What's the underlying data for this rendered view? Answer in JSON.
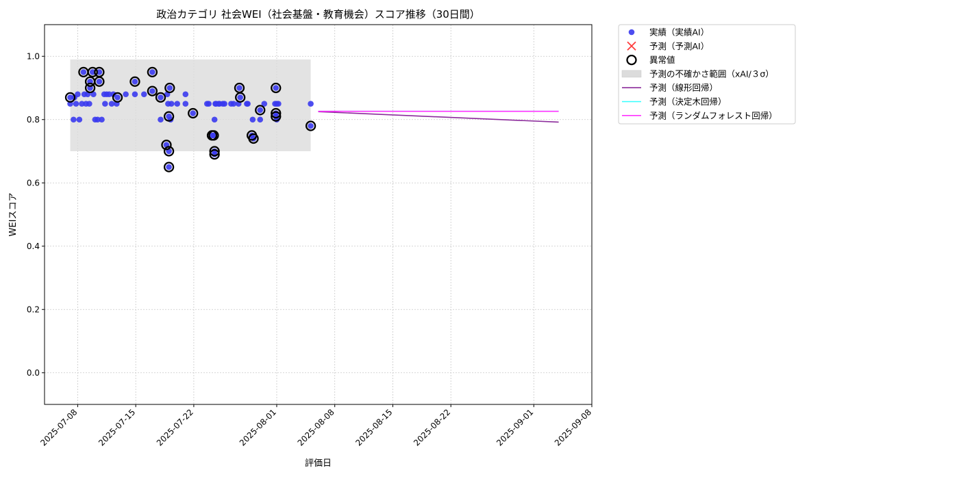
{
  "chart_data": {
    "type": "scatter",
    "title": "政治カテゴリ 社会WEI（社会基盤・教育機会）スコア推移（30日間）",
    "xlabel": "評価日",
    "ylabel": "WEIスコア",
    "xlim": [
      "2025-07-04",
      "2025-09-08"
    ],
    "ylim": [
      -0.1,
      1.1
    ],
    "x_ticks": [
      "2025-07-08",
      "2025-07-15",
      "2025-07-22",
      "2025-08-01",
      "2025-08-08",
      "2025-08-15",
      "2025-08-22",
      "2025-09-01",
      "2025-09-08"
    ],
    "y_ticks": [
      "0.0",
      "0.2",
      "0.4",
      "0.6",
      "0.8",
      "1.0"
    ],
    "grid": true,
    "legend_position": "outside-top-right",
    "legend": [
      {
        "label": "実績（実績AI）",
        "kind": "dot",
        "color": "#3a3aee"
      },
      {
        "label": "予測（予測AI）",
        "kind": "cross",
        "color": "#ff3b3b"
      },
      {
        "label": "異常値",
        "kind": "ring",
        "color": "#000000"
      },
      {
        "label": "予測の不確かさ範囲（xAI/３σ）",
        "kind": "band",
        "color": "#dcdcdc"
      },
      {
        "label": "予測（線形回帰）",
        "kind": "line",
        "color": "#8b2a9b"
      },
      {
        "label": "予測（決定木回帰）",
        "kind": "line",
        "color": "#33ffff"
      },
      {
        "label": "予測（ランダムフォレスト回帰）",
        "kind": "line",
        "color": "#ff33ff"
      }
    ],
    "uncertainty_band": {
      "x_start": "2025-07-07.1",
      "x_end": "2025-08-05.1",
      "y_low": 0.7,
      "y_high": 0.99
    },
    "actual": [
      [
        "2025-07-07.1",
        0.87
      ],
      [
        "2025-07-07.1",
        0.85
      ],
      [
        "2025-07-07.5",
        0.8
      ],
      [
        "2025-07-07.6",
        0.87
      ],
      [
        "2025-07-07.8",
        0.85
      ],
      [
        "2025-07-08.0",
        0.88
      ],
      [
        "2025-07-08.2",
        0.8
      ],
      [
        "2025-07-08.5",
        0.85
      ],
      [
        "2025-07-08.7",
        0.95
      ],
      [
        "2025-07-08.8",
        0.88
      ],
      [
        "2025-07-09.0",
        0.85
      ],
      [
        "2025-07-09.2",
        0.88
      ],
      [
        "2025-07-09.4",
        0.85
      ],
      [
        "2025-07-09.5",
        0.92
      ],
      [
        "2025-07-09.5",
        0.9
      ],
      [
        "2025-07-09.8",
        0.95
      ],
      [
        "2025-07-09.9",
        0.88
      ],
      [
        "2025-07-10.1",
        0.8
      ],
      [
        "2025-07-10.4",
        0.8
      ],
      [
        "2025-07-10.6",
        0.92
      ],
      [
        "2025-07-10.6",
        0.95
      ],
      [
        "2025-07-10.9",
        0.8
      ],
      [
        "2025-07-11.2",
        0.88
      ],
      [
        "2025-07-11.3",
        0.85
      ],
      [
        "2025-07-11.5",
        0.88
      ],
      [
        "2025-07-11.8",
        0.88
      ],
      [
        "2025-07-12.1",
        0.85
      ],
      [
        "2025-07-12.3",
        0.88
      ],
      [
        "2025-07-12.7",
        0.85
      ],
      [
        "2025-07-12.8",
        0.87
      ],
      [
        "2025-07-13.8",
        0.88
      ],
      [
        "2025-07-14.9",
        0.88
      ],
      [
        "2025-07-14.9",
        0.92
      ],
      [
        "2025-07-16.0",
        0.88
      ],
      [
        "2025-07-17.0",
        0.95
      ],
      [
        "2025-07-17.0",
        0.89
      ],
      [
        "2025-07-18.0",
        0.87
      ],
      [
        "2025-07-18.0",
        0.8
      ],
      [
        "2025-07-18.7",
        0.72
      ],
      [
        "2025-07-18.8",
        0.88
      ],
      [
        "2025-07-18.9",
        0.85
      ],
      [
        "2025-07-19.0",
        0.81
      ],
      [
        "2025-07-19.0",
        0.7
      ],
      [
        "2025-07-19.0",
        0.65
      ],
      [
        "2025-07-19.1",
        0.9
      ],
      [
        "2025-07-19.2",
        0.8
      ],
      [
        "2025-07-19.3",
        0.85
      ],
      [
        "2025-07-20.0",
        0.85
      ],
      [
        "2025-07-21.0",
        0.88
      ],
      [
        "2025-07-21.0",
        0.85
      ],
      [
        "2025-07-21.9",
        0.82
      ],
      [
        "2025-07-23.6",
        0.85
      ],
      [
        "2025-07-23.8",
        0.85
      ],
      [
        "2025-07-24.2",
        0.75
      ],
      [
        "2025-07-24.4",
        0.75
      ],
      [
        "2025-07-24.5",
        0.7
      ],
      [
        "2025-07-24.5",
        0.69
      ],
      [
        "2025-07-24.5",
        0.8
      ],
      [
        "2025-07-24.6",
        0.85
      ],
      [
        "2025-07-24.7",
        0.85
      ],
      [
        "2025-07-25.0",
        0.85
      ],
      [
        "2025-07-25.1",
        0.85
      ],
      [
        "2025-07-25.5",
        0.85
      ],
      [
        "2025-07-25.7",
        0.85
      ],
      [
        "2025-07-26.5",
        0.85
      ],
      [
        "2025-07-26.8",
        0.85
      ],
      [
        "2025-07-27.4",
        0.85
      ],
      [
        "2025-07-27.5",
        0.9
      ],
      [
        "2025-07-27.6",
        0.87
      ],
      [
        "2025-07-28.4",
        0.85
      ],
      [
        "2025-07-28.5",
        0.85
      ],
      [
        "2025-07-29.0",
        0.75
      ],
      [
        "2025-07-29.2",
        0.74
      ],
      [
        "2025-07-29.1",
        0.8
      ],
      [
        "2025-07-30.0",
        0.83
      ],
      [
        "2025-07-30.0",
        0.8
      ],
      [
        "2025-07-30.5",
        0.85
      ],
      [
        "2025-07-31.9",
        0.9
      ],
      [
        "2025-07-31.9",
        0.82
      ],
      [
        "2025-07-31.9",
        0.81
      ],
      [
        "2025-07-31.8",
        0.85
      ],
      [
        "2025-08-01.0",
        0.8
      ],
      [
        "2025-08-01.0",
        0.85
      ],
      [
        "2025-08-01.2",
        0.85
      ],
      [
        "2025-08-05.1",
        0.85
      ],
      [
        "2025-08-05.1",
        0.78
      ]
    ],
    "anomalies": [
      [
        "2025-07-07.1",
        0.87
      ],
      [
        "2025-07-08.7",
        0.95
      ],
      [
        "2025-07-09.5",
        0.92
      ],
      [
        "2025-07-09.5",
        0.9
      ],
      [
        "2025-07-09.8",
        0.95
      ],
      [
        "2025-07-10.6",
        0.95
      ],
      [
        "2025-07-10.6",
        0.92
      ],
      [
        "2025-07-12.8",
        0.87
      ],
      [
        "2025-07-14.9",
        0.92
      ],
      [
        "2025-07-17.0",
        0.95
      ],
      [
        "2025-07-17.0",
        0.89
      ],
      [
        "2025-07-18.0",
        0.87
      ],
      [
        "2025-07-18.7",
        0.72
      ],
      [
        "2025-07-19.0",
        0.81
      ],
      [
        "2025-07-19.0",
        0.7
      ],
      [
        "2025-07-19.0",
        0.65
      ],
      [
        "2025-07-19.1",
        0.9
      ],
      [
        "2025-07-21.9",
        0.82
      ],
      [
        "2025-07-24.2",
        0.75
      ],
      [
        "2025-07-24.4",
        0.75
      ],
      [
        "2025-07-24.5",
        0.7
      ],
      [
        "2025-07-24.5",
        0.69
      ],
      [
        "2025-07-27.5",
        0.9
      ],
      [
        "2025-07-27.6",
        0.87
      ],
      [
        "2025-07-29.0",
        0.75
      ],
      [
        "2025-07-29.2",
        0.74
      ],
      [
        "2025-07-30.0",
        0.83
      ],
      [
        "2025-07-31.9",
        0.9
      ],
      [
        "2025-07-31.9",
        0.82
      ],
      [
        "2025-07-31.9",
        0.81
      ],
      [
        "2025-08-05.1",
        0.78
      ]
    ],
    "forecast_linear": [
      [
        "2025-08-06",
        0.825
      ],
      [
        "2025-09-04",
        0.792
      ]
    ],
    "forecast_tree": [
      [
        "2025-08-06",
        0.826
      ],
      [
        "2025-09-04",
        0.826
      ]
    ],
    "forecast_random_forest": [
      [
        "2025-08-06",
        0.826
      ],
      [
        "2025-09-04",
        0.826
      ]
    ],
    "colors": {
      "actual": "#3a3aee",
      "anomaly_ring": "#000000",
      "band": "#dcdcdc",
      "linear": "#8b2a9b",
      "tree": "#33ffff",
      "random_forest": "#ff33ff",
      "grid": "#c8c8c8"
    }
  }
}
